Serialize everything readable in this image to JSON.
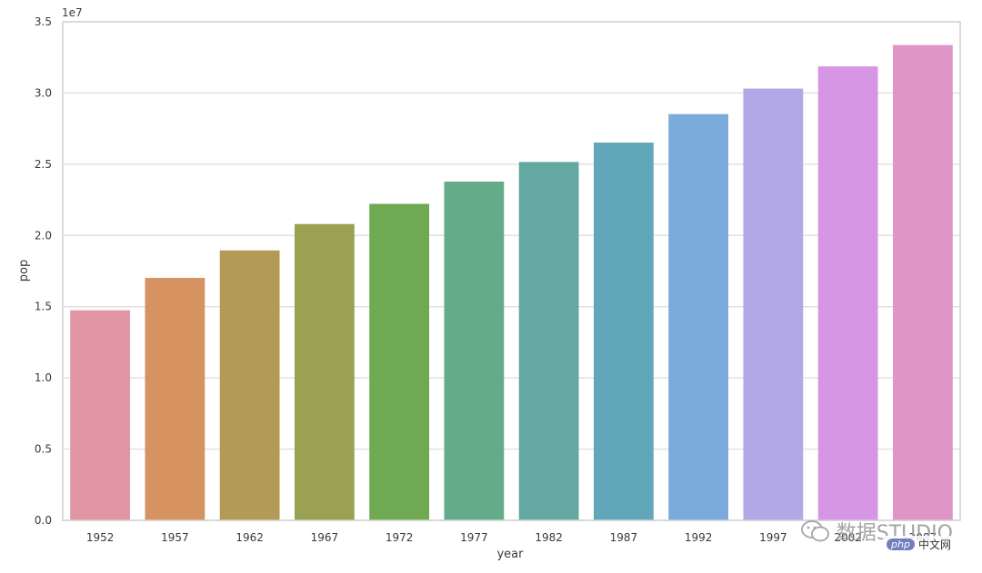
{
  "chart_data": {
    "type": "bar",
    "title": "",
    "xlabel": "year",
    "ylabel": "pop",
    "y_multiplier": "1e7",
    "ylim": [
      0,
      35000000
    ],
    "y_ticks": [
      0,
      5000000,
      10000000,
      15000000,
      20000000,
      25000000,
      30000000,
      35000000
    ],
    "y_tick_labels": [
      "0.0",
      "0.5",
      "1.0",
      "1.5",
      "2.0",
      "2.5",
      "3.0",
      "3.5"
    ],
    "grid": "horizontal",
    "categories": [
      "1952",
      "1957",
      "1962",
      "1967",
      "1972",
      "1977",
      "1982",
      "1987",
      "1992",
      "1997",
      "2002",
      "2007"
    ],
    "values": [
      14750000,
      17020000,
      18950000,
      20800000,
      22220000,
      23780000,
      25160000,
      26520000,
      28520000,
      30310000,
      31870000,
      33370000
    ],
    "colors": [
      "#e096a3",
      "#d69261",
      "#b49b55",
      "#9aa252",
      "#6fa951",
      "#64ab89",
      "#63a9a2",
      "#62a7b9",
      "#7aabdb",
      "#b2a8e5",
      "#d696e3",
      "#df95c5"
    ]
  },
  "watermark": {
    "text": "数据STUDIO",
    "badge_php": "php",
    "badge_text": "中文网"
  }
}
